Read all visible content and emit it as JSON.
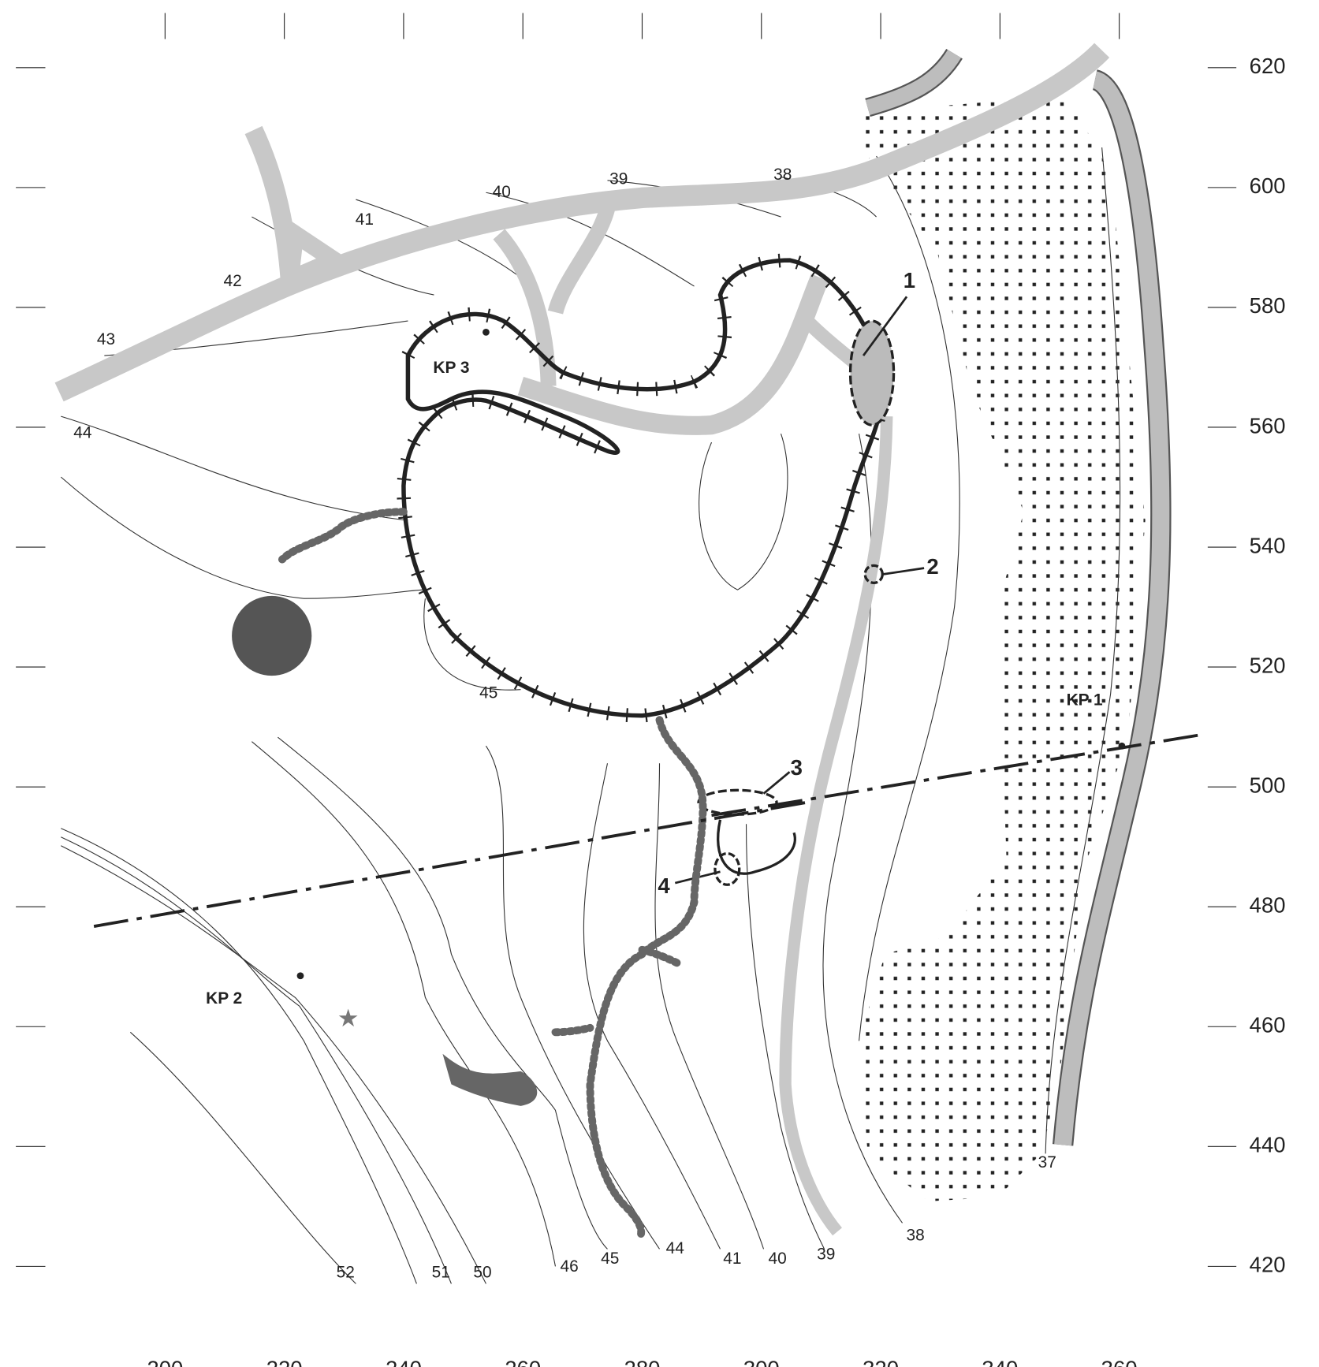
{
  "x_axis": {
    "ticks": [
      200,
      220,
      240,
      260,
      280,
      300,
      320,
      340,
      360
    ]
  },
  "y_axis": {
    "ticks": [
      620,
      600,
      580,
      560,
      540,
      520,
      500,
      480,
      460,
      440,
      420
    ]
  },
  "contour_labels": [
    43,
    42,
    41,
    40,
    39,
    38,
    44,
    45,
    52,
    51,
    50,
    46,
    45,
    44,
    41,
    40,
    39,
    38,
    37
  ],
  "points": [
    "KP 1",
    "KP 2",
    "KP 3"
  ],
  "features": [
    "1",
    "2",
    "3",
    "4"
  ]
}
